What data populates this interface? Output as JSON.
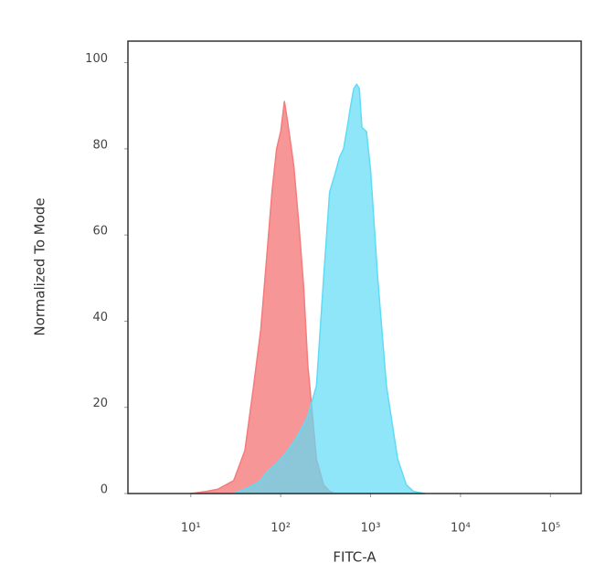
{
  "chart_data": {
    "type": "area",
    "x_label": "FITC-A",
    "y_label": "Normalized To Mode",
    "xscale": "log",
    "xlim": [
      2,
      220000
    ],
    "ylim": [
      0,
      105
    ],
    "xticks": [
      {
        "value": 10,
        "label": "10¹"
      },
      {
        "value": 100,
        "label": "10²"
      },
      {
        "value": 1000,
        "label": "10³"
      },
      {
        "value": 10000,
        "label": "10⁴"
      },
      {
        "value": 100000,
        "label": "10⁵"
      }
    ],
    "yticks": [
      0,
      20,
      40,
      60,
      80,
      100
    ],
    "grid": false,
    "x": [
      10,
      15,
      20,
      30,
      40,
      50,
      60,
      70,
      80,
      90,
      100,
      110,
      120,
      140,
      160,
      180,
      200,
      250,
      300,
      350,
      400,
      450,
      500,
      550,
      600,
      650,
      700,
      750,
      800,
      900,
      1000,
      1200,
      1500,
      2000,
      2500,
      3000,
      4000
    ],
    "series": [
      {
        "color": "#f47c7c",
        "values": [
          0,
          0.5,
          1,
          3,
          10,
          25,
          38,
          55,
          70,
          80,
          84,
          91,
          86,
          76,
          62,
          48,
          30,
          8,
          2,
          0.5,
          0,
          0,
          0,
          0,
          0,
          0,
          0,
          0,
          0,
          0,
          0,
          0,
          0,
          0,
          0,
          0,
          0
        ]
      },
      {
        "color": "#5fdcf5",
        "values": [
          0,
          0,
          0,
          0,
          1,
          2,
          3,
          5,
          6,
          7,
          8,
          9,
          10,
          12,
          14,
          16,
          18,
          25,
          50,
          70,
          74,
          78,
          80,
          85,
          90,
          94,
          95,
          94,
          85,
          84,
          75,
          50,
          25,
          8,
          2,
          0.5,
          0
        ]
      }
    ]
  }
}
